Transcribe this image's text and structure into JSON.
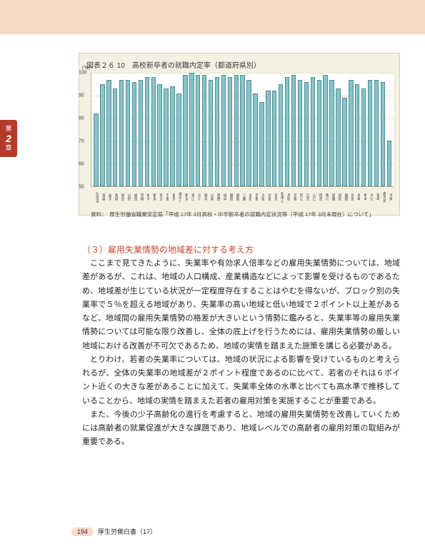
{
  "sideTab": {
    "top": "第",
    "num": "2",
    "bottom": "章"
  },
  "chart": {
    "title": "図表２６ 10　高校新卒者の就職内定率（都道府県別）",
    "yAxisUnit": "（％）",
    "ymin": 50,
    "ymax": 100,
    "ytick_step": 10,
    "yticks": [
      50,
      60,
      70,
      80,
      90,
      100
    ],
    "bar_color": "#88c3c9",
    "bar_border": "#4d8f95",
    "bg": "#ffffff",
    "panel_bg": "#f3f1e2",
    "grid_color": "#e4e1c5",
    "prefectures": [
      "北海道",
      "青森",
      "岩手",
      "宮城",
      "秋田",
      "山形",
      "福島",
      "茨城",
      "栃木",
      "群馬",
      "埼玉",
      "千葉",
      "東京",
      "神奈川",
      "新潟",
      "富山",
      "石川",
      "福井",
      "山梨",
      "長野",
      "岐阜",
      "静岡",
      "愛知",
      "三重",
      "滋賀",
      "京都",
      "大阪",
      "兵庫",
      "奈良",
      "和歌山",
      "鳥取",
      "島根",
      "岡山",
      "広島",
      "山口",
      "徳島",
      "香川",
      "愛媛",
      "高知",
      "福岡",
      "佐賀",
      "長崎",
      "熊本",
      "大分",
      "宮崎",
      "鹿児島",
      "沖縄"
    ],
    "values": [
      82,
      95,
      97,
      93,
      97,
      97,
      96,
      97,
      98,
      98,
      95,
      93,
      94,
      91,
      99,
      100,
      99,
      99,
      97,
      98,
      99,
      98,
      99,
      99,
      97,
      91,
      87,
      92,
      92,
      95,
      98,
      99,
      97,
      96,
      98,
      97,
      99,
      97,
      93,
      89,
      97,
      95,
      93,
      97,
      97,
      96,
      70
    ],
    "source": "資料：　厚生労働省職業安定局「平成 17年 3月高校・中学新卒者の就職内定状況等（平成 17年 3月末現在）について」"
  },
  "heading": "（３）雇用失業情勢の地域差に対する考え方",
  "paragraphs": [
    "ここまで見てきたように、失業率や有効求人倍率などの雇用失業情勢については、地域差があるが、これは、地域の人口構成、産業構造などによって影響を受けるものであるため、地域差が生じている状況が一定程度存在することはやむを得ないが、ブロック別の失業率で５％を超える地域があり、失業率の高い地域と低い地域で２ポイント以上差があるなど、地域間の雇用失業情勢の格差が大きいという情勢に鑑みると、失業率等の雇用失業情勢については可能な限り改善し、全体の底上げを行うためには、雇用失業情勢の厳しい地域における改善が不可欠であるため、地域の実情を踏まえた施策を講じる必要がある。",
    "とりわけ、若者の失業率については、地域の状況による影響を受けているものと考えられるが、全体の失業率の地域差が２ポイント程度であるのに比べて、若者のそれは６ポイント近くの大きな差があることに加えて、失業率全体の水準と比べても高水準で推移していることから、地域の実情を踏まえた若者の雇用対策を実施することが重要である。",
    "また、今後の少子高齢化の進行を考慮すると、地域の雇用失業情勢を改善していくためには高齢者の就業促進が大きな課題であり、地域レベルでの高齢者の雇用対策の取組みが重要である。"
  ],
  "footer": {
    "page": "194",
    "label": "厚生労働白書（17）"
  }
}
